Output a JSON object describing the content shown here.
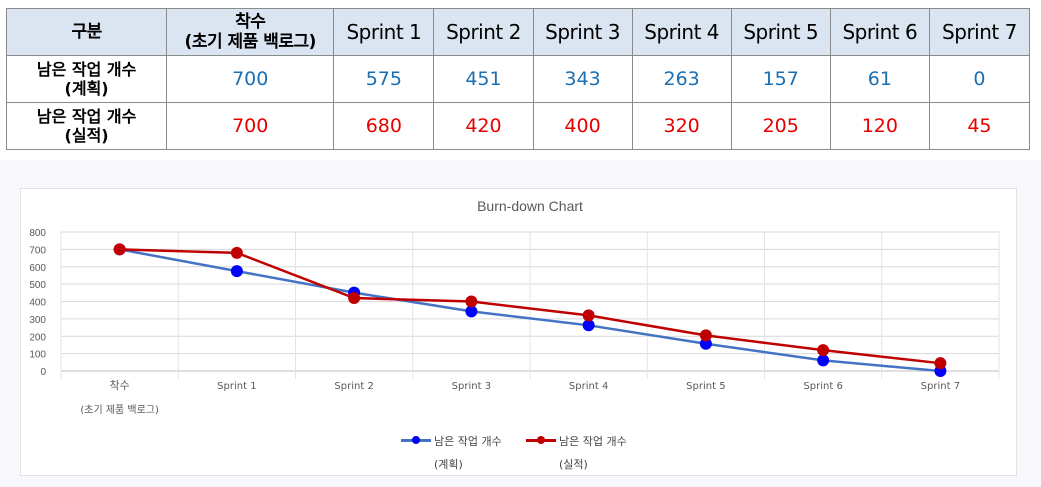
{
  "table": {
    "header": [
      "구분",
      "착수\n(초기 제품 백로그)",
      "Sprint 1",
      "Sprint 2",
      "Sprint 3",
      "Sprint 4",
      "Sprint 5",
      "Sprint 6",
      "Sprint 7"
    ],
    "rows": [
      {
        "label": "남은 작업 개수\n(계획)",
        "values": [
          "700",
          "575",
          "451",
          "343",
          "263",
          "157",
          "61",
          "0"
        ]
      },
      {
        "label": "남은 작업 개수\n(실적)",
        "values": [
          "700",
          "680",
          "420",
          "400",
          "320",
          "205",
          "120",
          "45"
        ]
      }
    ]
  },
  "colors": {
    "plan": "#4472c4",
    "plan_dot": "#0000ff",
    "actual": "#c00000",
    "plan_text": "#1b6fb3",
    "actual_text": "#e60000"
  },
  "chart_data": {
    "type": "line",
    "title": "Burn-down Chart",
    "categories": [
      "착수\n(초기 제품 백로그)",
      "Sprint 1",
      "Sprint 2",
      "Sprint 3",
      "Sprint 4",
      "Sprint 5",
      "Sprint 6",
      "Sprint 7"
    ],
    "series": [
      {
        "name": "남은 작업 개수\n(계획)",
        "values": [
          700,
          575,
          451,
          343,
          263,
          157,
          61,
          0
        ]
      },
      {
        "name": "남은 작업 개수\n(실적)",
        "values": [
          700,
          680,
          420,
          400,
          320,
          205,
          120,
          45
        ]
      }
    ],
    "ylim": [
      0,
      800
    ],
    "yticks": [
      0,
      100,
      200,
      300,
      400,
      500,
      600,
      700,
      800
    ],
    "grid": true,
    "legend": "bottom"
  }
}
